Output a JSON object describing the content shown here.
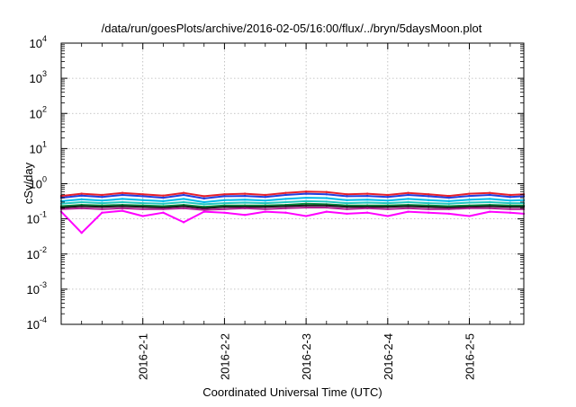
{
  "chart_data": {
    "type": "line",
    "title": "/data/run/goesPlots/archive/2016-02-05/16:00/flux/../bryn/5daysMoon.plot",
    "xlabel": "Coordinated Universal Time (UTC)",
    "ylabel": "cSv/day",
    "yscale": "log",
    "ylim": [
      0.0001,
      10000
    ],
    "xlim": [
      "2016-01-31T00:00",
      "2016-02-05T16:00"
    ],
    "grid": true,
    "xticks": [
      {
        "value": "2016-02-01T00:00",
        "label": "2016-2-1"
      },
      {
        "value": "2016-02-02T00:00",
        "label": "2016-2-2"
      },
      {
        "value": "2016-02-03T00:00",
        "label": "2016-2-3"
      },
      {
        "value": "2016-02-04T00:00",
        "label": "2016-2-4"
      },
      {
        "value": "2016-02-05T00:00",
        "label": "2016-2-5"
      }
    ],
    "yticks": [
      {
        "value": 0.0001,
        "base": "10",
        "exp": "-4"
      },
      {
        "value": 0.001,
        "base": "10",
        "exp": "-3"
      },
      {
        "value": 0.01,
        "base": "10",
        "exp": "-2"
      },
      {
        "value": 0.1,
        "base": "10",
        "exp": "-1"
      },
      {
        "value": 1,
        "base": "10",
        "exp": "0"
      },
      {
        "value": 10,
        "base": "10",
        "exp": "1"
      },
      {
        "value": 100,
        "base": "10",
        "exp": "2"
      },
      {
        "value": 1000,
        "base": "10",
        "exp": "3"
      },
      {
        "value": 10000,
        "base": "10",
        "exp": "4"
      }
    ],
    "x": [
      "2016-01-31T00:00",
      "2016-01-31T06:00",
      "2016-01-31T12:00",
      "2016-01-31T18:00",
      "2016-02-01T00:00",
      "2016-02-01T06:00",
      "2016-02-01T12:00",
      "2016-02-01T18:00",
      "2016-02-02T00:00",
      "2016-02-02T06:00",
      "2016-02-02T12:00",
      "2016-02-02T18:00",
      "2016-02-03T00:00",
      "2016-02-03T06:00",
      "2016-02-03T12:00",
      "2016-02-03T18:00",
      "2016-02-04T00:00",
      "2016-02-04T06:00",
      "2016-02-04T12:00",
      "2016-02-04T18:00",
      "2016-02-05T00:00",
      "2016-02-05T06:00",
      "2016-02-05T12:00",
      "2016-02-05T16:00"
    ],
    "series": [
      {
        "color": "#e8202a",
        "values": [
          0.45,
          0.52,
          0.48,
          0.55,
          0.5,
          0.46,
          0.55,
          0.44,
          0.5,
          0.52,
          0.48,
          0.55,
          0.6,
          0.58,
          0.5,
          0.52,
          0.48,
          0.55,
          0.5,
          0.45,
          0.52,
          0.55,
          0.48,
          0.5
        ]
      },
      {
        "color": "#2040e0",
        "values": [
          0.4,
          0.46,
          0.42,
          0.48,
          0.44,
          0.4,
          0.48,
          0.38,
          0.44,
          0.45,
          0.42,
          0.48,
          0.52,
          0.5,
          0.44,
          0.45,
          0.42,
          0.48,
          0.44,
          0.4,
          0.45,
          0.48,
          0.42,
          0.44
        ]
      },
      {
        "color": "#00b8e8",
        "values": [
          0.32,
          0.36,
          0.33,
          0.37,
          0.34,
          0.32,
          0.37,
          0.3,
          0.34,
          0.35,
          0.33,
          0.37,
          0.4,
          0.39,
          0.34,
          0.35,
          0.33,
          0.37,
          0.34,
          0.32,
          0.35,
          0.37,
          0.33,
          0.34
        ]
      },
      {
        "color": "#20c8c0",
        "values": [
          0.27,
          0.3,
          0.28,
          0.3,
          0.28,
          0.27,
          0.3,
          0.26,
          0.28,
          0.29,
          0.28,
          0.3,
          0.32,
          0.31,
          0.28,
          0.29,
          0.28,
          0.3,
          0.28,
          0.27,
          0.29,
          0.3,
          0.28,
          0.28
        ]
      },
      {
        "color": "#008a3a",
        "values": [
          0.23,
          0.25,
          0.24,
          0.25,
          0.24,
          0.23,
          0.25,
          0.22,
          0.24,
          0.24,
          0.24,
          0.25,
          0.27,
          0.26,
          0.24,
          0.24,
          0.24,
          0.25,
          0.24,
          0.23,
          0.24,
          0.25,
          0.24,
          0.24
        ]
      },
      {
        "color": "#1a1a1a",
        "values": [
          0.21,
          0.23,
          0.22,
          0.23,
          0.22,
          0.21,
          0.23,
          0.2,
          0.22,
          0.22,
          0.22,
          0.23,
          0.24,
          0.24,
          0.22,
          0.22,
          0.22,
          0.23,
          0.22,
          0.21,
          0.22,
          0.23,
          0.22,
          0.22
        ]
      },
      {
        "color": "#b02090",
        "values": [
          0.19,
          0.2,
          0.19,
          0.2,
          0.19,
          0.19,
          0.2,
          0.18,
          0.19,
          0.2,
          0.19,
          0.2,
          0.21,
          0.21,
          0.19,
          0.2,
          0.19,
          0.2,
          0.19,
          0.19,
          0.2,
          0.2,
          0.19,
          0.19
        ]
      },
      {
        "color": "#ff00ff",
        "values": [
          0.16,
          0.04,
          0.15,
          0.17,
          0.12,
          0.15,
          0.08,
          0.16,
          0.15,
          0.13,
          0.16,
          0.15,
          0.12,
          0.16,
          0.14,
          0.15,
          0.12,
          0.16,
          0.15,
          0.14,
          0.12,
          0.16,
          0.15,
          0.14
        ]
      }
    ]
  }
}
